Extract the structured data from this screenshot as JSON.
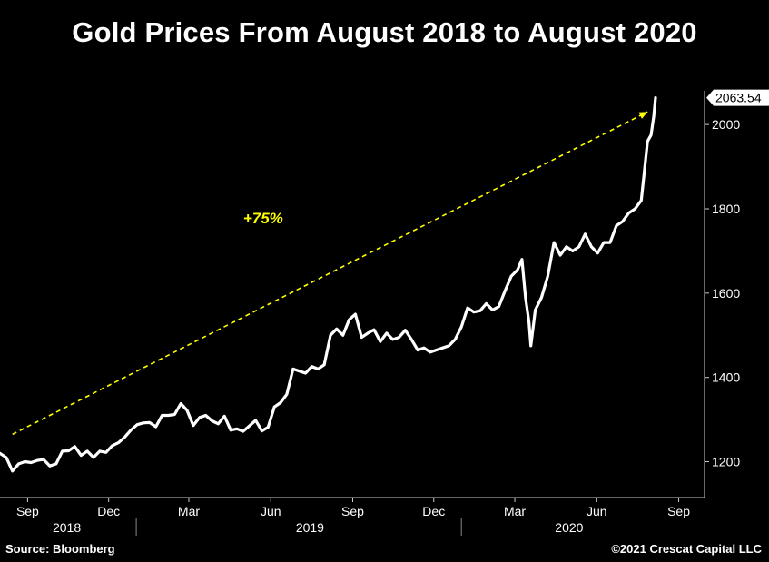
{
  "title": "Gold Prices From August 2018 to August 2020",
  "footer": {
    "source": "Source: Bloomberg",
    "copyright": "©2021 Crescat Capital LLC"
  },
  "colors": {
    "background": "#000000",
    "line": "#ffffff",
    "annotation": "#ffff00",
    "axis": "#cccccc"
  },
  "chart_data": {
    "type": "line",
    "title": "Gold Prices From August 2018 to August 2020",
    "xlabel": "",
    "ylabel": "",
    "x_range": [
      "2018-08-01",
      "2020-09-30"
    ],
    "ylim": [
      1115,
      2080
    ],
    "y_ticks": [
      1200,
      1400,
      1600,
      1800,
      2000
    ],
    "grid": false,
    "legend": "none",
    "x_month_ticks": [
      {
        "date": "2018-09-01",
        "label": "Sep"
      },
      {
        "date": "2018-12-01",
        "label": "Dec"
      },
      {
        "date": "2019-03-01",
        "label": "Mar"
      },
      {
        "date": "2019-06-01",
        "label": "Jun"
      },
      {
        "date": "2019-09-01",
        "label": "Sep"
      },
      {
        "date": "2019-12-01",
        "label": "Dec"
      },
      {
        "date": "2020-03-01",
        "label": "Mar"
      },
      {
        "date": "2020-06-01",
        "label": "Jun"
      },
      {
        "date": "2020-09-01",
        "label": "Sep"
      }
    ],
    "x_year_labels": [
      {
        "date": "2018-10-15",
        "label": "2018"
      },
      {
        "date": "2019-07-15",
        "label": "2019"
      },
      {
        "date": "2020-05-01",
        "label": "2020"
      }
    ],
    "year_dividers": [
      "2019-01-01",
      "2020-01-01"
    ],
    "last_value_label": "2063.54",
    "annotations": [
      {
        "text": "+75%",
        "type": "arrow",
        "from": {
          "date": "2018-08-15",
          "value": 1265
        },
        "to": {
          "date": "2020-07-28",
          "value": 2030
        },
        "text_at": {
          "date": "2019-05-01",
          "value": 1765
        }
      }
    ],
    "series": [
      {
        "values": [
          [
            "2018-08-01",
            1220
          ],
          [
            "2018-08-08",
            1210
          ],
          [
            "2018-08-15",
            1178
          ],
          [
            "2018-08-22",
            1195
          ],
          [
            "2018-08-29",
            1200
          ],
          [
            "2018-09-05",
            1198
          ],
          [
            "2018-09-12",
            1203
          ],
          [
            "2018-09-19",
            1205
          ],
          [
            "2018-09-26",
            1190
          ],
          [
            "2018-10-03",
            1195
          ],
          [
            "2018-10-10",
            1225
          ],
          [
            "2018-10-17",
            1226
          ],
          [
            "2018-10-24",
            1236
          ],
          [
            "2018-10-31",
            1215
          ],
          [
            "2018-11-07",
            1225
          ],
          [
            "2018-11-14",
            1210
          ],
          [
            "2018-11-21",
            1225
          ],
          [
            "2018-11-28",
            1222
          ],
          [
            "2018-12-05",
            1238
          ],
          [
            "2018-12-12",
            1245
          ],
          [
            "2018-12-19",
            1258
          ],
          [
            "2018-12-26",
            1275
          ],
          [
            "2019-01-02",
            1288
          ],
          [
            "2019-01-09",
            1292
          ],
          [
            "2019-01-16",
            1293
          ],
          [
            "2019-01-23",
            1283
          ],
          [
            "2019-01-30",
            1310
          ],
          [
            "2019-02-06",
            1310
          ],
          [
            "2019-02-13",
            1312
          ],
          [
            "2019-02-20",
            1338
          ],
          [
            "2019-02-27",
            1322
          ],
          [
            "2019-03-06",
            1286
          ],
          [
            "2019-03-13",
            1305
          ],
          [
            "2019-03-20",
            1310
          ],
          [
            "2019-03-27",
            1297
          ],
          [
            "2019-04-03",
            1290
          ],
          [
            "2019-04-10",
            1308
          ],
          [
            "2019-04-17",
            1275
          ],
          [
            "2019-04-24",
            1278
          ],
          [
            "2019-05-01",
            1272
          ],
          [
            "2019-05-08",
            1285
          ],
          [
            "2019-05-15",
            1298
          ],
          [
            "2019-05-22",
            1273
          ],
          [
            "2019-05-29",
            1282
          ],
          [
            "2019-06-05",
            1330
          ],
          [
            "2019-06-12",
            1340
          ],
          [
            "2019-06-19",
            1360
          ],
          [
            "2019-06-26",
            1420
          ],
          [
            "2019-07-03",
            1415
          ],
          [
            "2019-07-10",
            1410
          ],
          [
            "2019-07-17",
            1426
          ],
          [
            "2019-07-24",
            1420
          ],
          [
            "2019-07-31",
            1430
          ],
          [
            "2019-08-07",
            1500
          ],
          [
            "2019-08-14",
            1515
          ],
          [
            "2019-08-21",
            1500
          ],
          [
            "2019-08-28",
            1537
          ],
          [
            "2019-09-04",
            1550
          ],
          [
            "2019-09-11",
            1495
          ],
          [
            "2019-09-18",
            1505
          ],
          [
            "2019-09-25",
            1513
          ],
          [
            "2019-10-02",
            1485
          ],
          [
            "2019-10-09",
            1505
          ],
          [
            "2019-10-16",
            1490
          ],
          [
            "2019-10-23",
            1495
          ],
          [
            "2019-10-30",
            1512
          ],
          [
            "2019-11-06",
            1490
          ],
          [
            "2019-11-13",
            1465
          ],
          [
            "2019-11-20",
            1470
          ],
          [
            "2019-11-27",
            1460
          ],
          [
            "2019-12-04",
            1465
          ],
          [
            "2019-12-11",
            1470
          ],
          [
            "2019-12-18",
            1475
          ],
          [
            "2019-12-25",
            1490
          ],
          [
            "2020-01-01",
            1520
          ],
          [
            "2020-01-08",
            1565
          ],
          [
            "2020-01-15",
            1555
          ],
          [
            "2020-01-22",
            1558
          ],
          [
            "2020-01-29",
            1575
          ],
          [
            "2020-02-05",
            1560
          ],
          [
            "2020-02-12",
            1568
          ],
          [
            "2020-02-19",
            1605
          ],
          [
            "2020-02-26",
            1640
          ],
          [
            "2020-03-04",
            1655
          ],
          [
            "2020-03-09",
            1680
          ],
          [
            "2020-03-13",
            1590
          ],
          [
            "2020-03-17",
            1530
          ],
          [
            "2020-03-19",
            1475
          ],
          [
            "2020-03-24",
            1560
          ],
          [
            "2020-03-31",
            1590
          ],
          [
            "2020-04-07",
            1640
          ],
          [
            "2020-04-14",
            1720
          ],
          [
            "2020-04-21",
            1690
          ],
          [
            "2020-04-28",
            1710
          ],
          [
            "2020-05-05",
            1700
          ],
          [
            "2020-05-12",
            1710
          ],
          [
            "2020-05-19",
            1740
          ],
          [
            "2020-05-26",
            1710
          ],
          [
            "2020-06-02",
            1695
          ],
          [
            "2020-06-09",
            1720
          ],
          [
            "2020-06-16",
            1720
          ],
          [
            "2020-06-23",
            1760
          ],
          [
            "2020-06-30",
            1770
          ],
          [
            "2020-07-07",
            1790
          ],
          [
            "2020-07-14",
            1800
          ],
          [
            "2020-07-21",
            1820
          ],
          [
            "2020-07-24",
            1880
          ],
          [
            "2020-07-28",
            1960
          ],
          [
            "2020-08-01",
            1975
          ],
          [
            "2020-08-04",
            2020
          ],
          [
            "2020-08-06",
            2063.54
          ]
        ]
      }
    ]
  }
}
